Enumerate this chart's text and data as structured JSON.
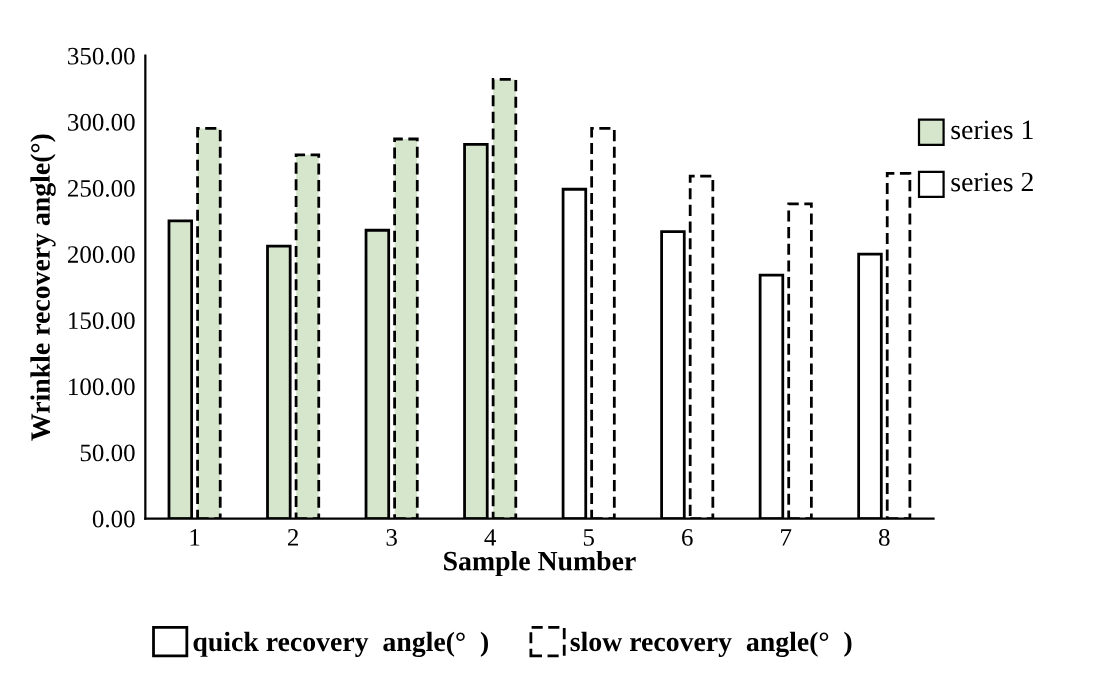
{
  "chart_data": {
    "type": "bar",
    "xlabel": "Sample Number",
    "ylabel": "Wrinkle recovery angle(°)",
    "categories": [
      "1",
      "2",
      "3",
      "4",
      "5",
      "6",
      "7",
      "8"
    ],
    "series": [
      {
        "name": "quick recovery  angle(°  )",
        "line_style": "solid",
        "colors": [
          "#d6e6cc",
          "#d6e6cc",
          "#d6e6cc",
          "#d6e6cc",
          "#ffffff",
          "#ffffff",
          "#ffffff",
          "#ffffff"
        ],
        "values": [
          225,
          206,
          218,
          283,
          249,
          217,
          184,
          200
        ]
      },
      {
        "name": "slow recovery  angle(°  )",
        "line_style": "dashed",
        "colors": [
          "#d6e6cc",
          "#d6e6cc",
          "#d6e6cc",
          "#d6e6cc",
          "#ffffff",
          "#ffffff",
          "#ffffff",
          "#ffffff"
        ],
        "values": [
          295,
          275,
          287,
          332,
          295,
          259,
          238,
          261
        ]
      }
    ],
    "annotations": [
      "series 1",
      "series 2"
    ],
    "ylim": [
      0,
      350
    ],
    "yticks": [
      {
        "value": 0,
        "label": "0.00"
      },
      {
        "value": 50,
        "label": "50.00"
      },
      {
        "value": 100,
        "label": "100.00"
      },
      {
        "value": 150,
        "label": "150.00"
      },
      {
        "value": 200,
        "label": "200.00"
      },
      {
        "value": 250,
        "label": "250.00"
      },
      {
        "value": 300,
        "label": "300.00"
      },
      {
        "value": 350,
        "label": "350.00"
      }
    ],
    "grid": false,
    "legend": "bottom"
  }
}
